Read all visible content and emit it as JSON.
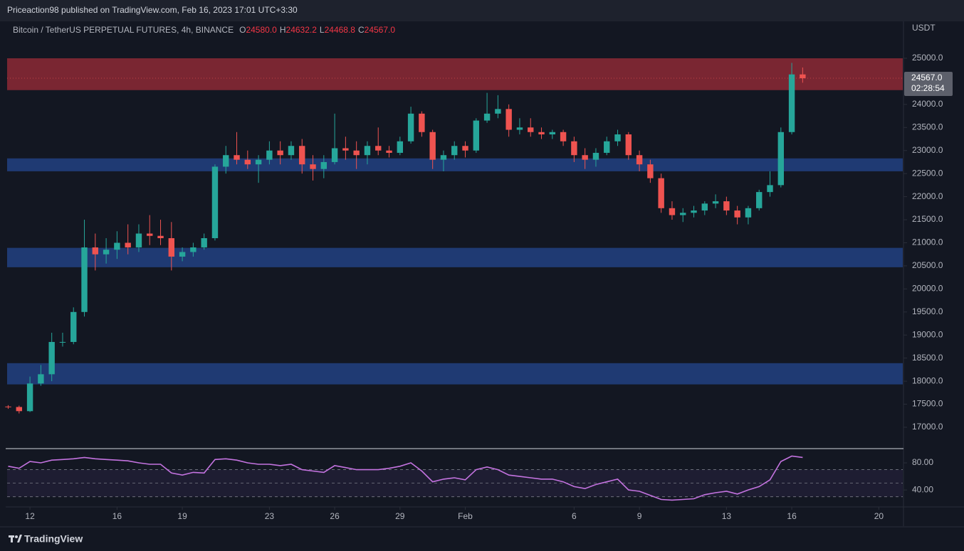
{
  "header": {
    "publisher": "Priceaction98 published on TradingView.com, Feb 16, 2023 17:01 UTC+3:30"
  },
  "chart_data": [
    {
      "type": "candlestick",
      "title": "Bitcoin / TetherUS PERPETUAL FUTURES, 4h, BINANCE",
      "ohlc_legend": [
        {
          "key": "O",
          "text": "24580.0"
        },
        {
          "key": "H",
          "text": "24632.2"
        },
        {
          "key": "L",
          "text": "24468.8"
        },
        {
          "key": "C",
          "text": "24567.0"
        }
      ],
      "currency": "USDT",
      "last_price_label": "24567.0",
      "countdown": "02:28:54",
      "up_color": "#26a69a",
      "down_color": "#ef5350",
      "x": [
        11,
        11.5,
        12,
        12.5,
        13,
        13.5,
        14,
        14.5,
        15,
        15.5,
        16,
        16.5,
        17,
        17.5,
        18,
        18.5,
        19,
        19.5,
        20,
        20.5,
        21,
        21.5,
        22,
        22.5,
        23,
        23.5,
        24,
        24.5,
        25,
        25.5,
        26,
        26.5,
        27,
        27.5,
        28,
        28.5,
        29,
        29.5,
        30,
        30.5,
        31,
        31.5,
        32,
        32.5,
        33,
        33.5,
        34,
        34.5,
        35,
        35.5,
        36,
        36.5,
        37,
        37.5,
        38,
        38.5,
        39,
        39.5,
        40,
        40.5,
        41,
        41.5,
        42,
        42.5,
        43,
        43.5,
        44,
        44.5,
        45,
        45.5,
        46,
        46.5,
        47,
        47.5
      ],
      "open": [
        17450,
        17440,
        17350,
        17950,
        18150,
        18850,
        18850,
        19500,
        20900,
        20750,
        20850,
        21000,
        20900,
        21200,
        21150,
        21100,
        20700,
        20800,
        20900,
        21100,
        22650,
        22900,
        22800,
        22700,
        22800,
        23000,
        22900,
        23100,
        22700,
        22600,
        22750,
        23050,
        23000,
        22900,
        23100,
        23000,
        22950,
        23200,
        23800,
        23400,
        22800,
        22900,
        23100,
        23000,
        23650,
        23800,
        23900,
        23450,
        23500,
        23400,
        23350,
        23400,
        23200,
        22900,
        22800,
        22950,
        23200,
        23350,
        22900,
        22700,
        22400,
        21750,
        21600,
        21650,
        21700,
        21850,
        21900,
        21700,
        21550,
        21750,
        22100,
        22250,
        23400,
        24650
      ],
      "high": [
        17480,
        17470,
        18100,
        18350,
        19050,
        19050,
        19600,
        21500,
        21200,
        21100,
        21250,
        21400,
        21400,
        21600,
        21500,
        21450,
        20900,
        21000,
        21200,
        22700,
        23100,
        23400,
        23000,
        22900,
        23200,
        23200,
        23200,
        23250,
        22900,
        22900,
        23800,
        23300,
        23200,
        23200,
        23500,
        23100,
        23300,
        23950,
        23850,
        23450,
        23000,
        23200,
        23200,
        23700,
        24250,
        24200,
        24000,
        23700,
        23700,
        23500,
        23450,
        23450,
        23300,
        23050,
        23050,
        23300,
        23450,
        23400,
        23000,
        22800,
        22500,
        21900,
        21750,
        21800,
        21900,
        22050,
        22000,
        21800,
        21800,
        22150,
        22550,
        23500,
        24900,
        24800
      ],
      "low": [
        17400,
        17300,
        17330,
        17900,
        18000,
        18750,
        18800,
        19400,
        20400,
        20550,
        20650,
        20750,
        20800,
        20950,
        20950,
        20400,
        20600,
        20700,
        20850,
        21050,
        22500,
        22700,
        22600,
        22300,
        22700,
        22700,
        22800,
        22500,
        22350,
        22400,
        22700,
        22800,
        22600,
        22700,
        22900,
        22850,
        22900,
        23150,
        23300,
        22600,
        22550,
        22800,
        22850,
        22950,
        23600,
        23700,
        23300,
        23350,
        23300,
        23250,
        23250,
        23100,
        22750,
        22600,
        22650,
        22900,
        23100,
        22800,
        22550,
        22300,
        21650,
        21500,
        21450,
        21550,
        21600,
        21750,
        21600,
        21400,
        21400,
        21700,
        22000,
        22200,
        23350,
        24470
      ],
      "close": [
        17440,
        17350,
        17950,
        18150,
        18850,
        18850,
        19500,
        20900,
        20750,
        20850,
        21000,
        20900,
        21200,
        21150,
        21100,
        20700,
        20800,
        20900,
        21100,
        22650,
        22900,
        22800,
        22700,
        22800,
        23000,
        22900,
        23100,
        22700,
        22600,
        22750,
        23050,
        23000,
        22900,
        23100,
        23000,
        22950,
        23200,
        23800,
        23400,
        22800,
        22900,
        23100,
        23000,
        23650,
        23800,
        23900,
        23450,
        23500,
        23400,
        23350,
        23400,
        23200,
        22900,
        22800,
        22950,
        23200,
        23350,
        22900,
        22700,
        22400,
        21750,
        21600,
        21650,
        21700,
        21850,
        21900,
        21700,
        21550,
        21750,
        22100,
        22250,
        23400,
        24650,
        24567
      ],
      "zones": [
        {
          "from": 24310,
          "to": 25000,
          "color": "#7a2632"
        },
        {
          "from": 22550,
          "to": 22830,
          "color": "#1f3a73"
        },
        {
          "from": 20470,
          "to": 20890,
          "color": "#1f3a73"
        },
        {
          "from": 17930,
          "to": 18390,
          "color": "#1f3a73"
        }
      ],
      "xlim": [
        10.95,
        52.1
      ],
      "ylim": [
        16553,
        25801
      ],
      "yticks": [
        {
          "value": 17000,
          "label": "17000.0"
        },
        {
          "value": 17500,
          "label": "17500.0"
        },
        {
          "value": 18000,
          "label": "18000.0"
        },
        {
          "value": 18500,
          "label": "18500.0"
        },
        {
          "value": 19000,
          "label": "19000.0"
        },
        {
          "value": 19500,
          "label": "19500.0"
        },
        {
          "value": 20000,
          "label": "20000.0"
        },
        {
          "value": 20500,
          "label": "20500.0"
        },
        {
          "value": 21000,
          "label": "21000.0"
        },
        {
          "value": 21500,
          "label": "21500.0"
        },
        {
          "value": 22000,
          "label": "22000.0"
        },
        {
          "value": 22500,
          "label": "22500.0"
        },
        {
          "value": 23000,
          "label": "23000.0"
        },
        {
          "value": 23500,
          "label": "23500.0"
        },
        {
          "value": 24000,
          "label": "24000.0"
        },
        {
          "value": 25000,
          "label": "25000.0"
        }
      ],
      "xticks": [
        12,
        16,
        19,
        23,
        26,
        29,
        {
          "value": 32,
          "label": "Feb"
        },
        {
          "value": 37,
          "label": "6"
        },
        {
          "value": 40,
          "label": "9"
        },
        {
          "value": 44,
          "label": "13"
        },
        {
          "value": 47,
          "label": "16"
        },
        {
          "value": 51,
          "label": "20"
        }
      ]
    },
    {
      "type": "line",
      "color": "#c473e0",
      "x": [
        11,
        11.5,
        12,
        12.5,
        13,
        13.5,
        14,
        14.5,
        15,
        15.5,
        16,
        16.5,
        17,
        17.5,
        18,
        18.5,
        19,
        19.5,
        20,
        20.5,
        21,
        21.5,
        22,
        22.5,
        23,
        23.5,
        24,
        24.5,
        25,
        25.5,
        26,
        26.5,
        27,
        27.5,
        28,
        28.5,
        29,
        29.5,
        30,
        30.5,
        31,
        31.5,
        32,
        32.5,
        33,
        33.5,
        34,
        34.5,
        35,
        35.5,
        36,
        36.5,
        37,
        37.5,
        38,
        38.5,
        39,
        39.5,
        40,
        40.5,
        41,
        41.5,
        42,
        42.5,
        43,
        43.5,
        44,
        44.5,
        45,
        45.5,
        46,
        46.5,
        47,
        47.5
      ],
      "values": [
        75,
        72,
        82,
        80,
        84,
        85,
        86,
        88,
        86,
        85,
        84,
        83,
        80,
        78,
        78,
        65,
        62,
        66,
        65,
        85,
        86,
        84,
        80,
        78,
        78,
        76,
        78,
        70,
        68,
        66,
        76,
        73,
        70,
        70,
        70,
        72,
        75,
        80,
        68,
        52,
        56,
        58,
        55,
        70,
        74,
        70,
        62,
        60,
        58,
        56,
        56,
        52,
        45,
        42,
        48,
        52,
        56,
        40,
        38,
        32,
        26,
        25,
        26,
        27,
        33,
        36,
        38,
        34,
        40,
        45,
        55,
        82,
        90,
        88
      ],
      "levels": [
        30,
        50,
        70
      ],
      "xlim": [
        10.95,
        52.1
      ],
      "ylim": [
        16,
        100
      ],
      "yticks": [
        {
          "value": 40,
          "label": "40.00"
        },
        {
          "value": 80,
          "label": "80.00"
        }
      ]
    }
  ],
  "footer": {
    "logo": "TradingView"
  }
}
